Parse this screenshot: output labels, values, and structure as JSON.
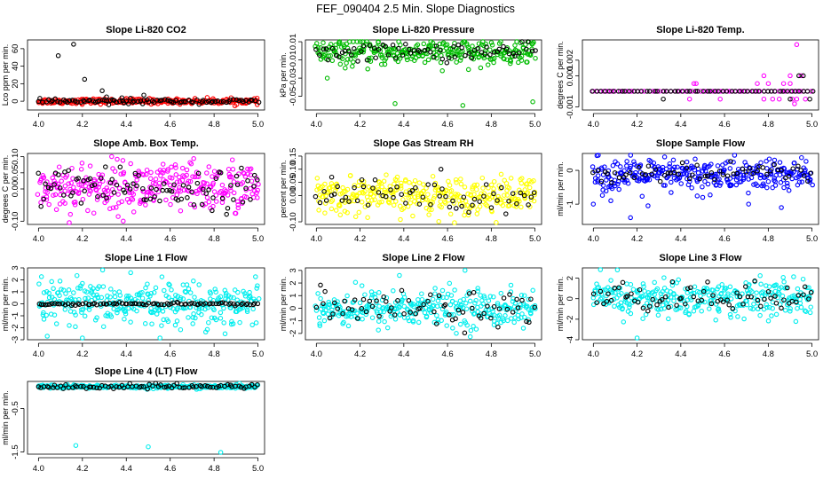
{
  "figure": {
    "title": "FEF_090404  2.5 Min. Slope Diagnostics"
  },
  "chart_data": [
    {
      "id": "co2",
      "type": "scatter",
      "title": "Slope Li-820 CO2",
      "ylabel": "Lco ppm per min.",
      "xlim": [
        3.95,
        5.03
      ],
      "ylim": [
        -10,
        70
      ],
      "xticks": [
        "4.0",
        "4.2",
        "4.4",
        "4.6",
        "4.8",
        "5.0"
      ],
      "yticks": [
        "0",
        "20",
        "40",
        "60"
      ],
      "series": [
        {
          "color": "#ff0000",
          "baseline": 0,
          "spread": 1.5,
          "n": 260,
          "outliers": []
        },
        {
          "color": "#000000",
          "baseline": 0,
          "spread": 1.2,
          "n": 90,
          "outliers": [
            [
              4.09,
              52
            ],
            [
              4.16,
              65
            ],
            [
              4.21,
              25
            ],
            [
              4.29,
              12
            ],
            [
              4.31,
              5
            ],
            [
              4.38,
              4
            ],
            [
              4.48,
              7
            ],
            [
              4.41,
              -3
            ],
            [
              4.32,
              -4
            ]
          ]
        }
      ]
    },
    {
      "id": "pressure",
      "type": "scatter",
      "title": "Slope Li-820 Pressure",
      "ylabel": "kPa per min.",
      "xlim": [
        3.95,
        5.03
      ],
      "ylim": [
        -0.065,
        0.012
      ],
      "xticks": [
        "4.0",
        "4.2",
        "4.4",
        "4.6",
        "4.8",
        "5.0"
      ],
      "yticks": [
        "-0.05",
        "-0.03",
        "-0.01",
        "0.01"
      ],
      "series": [
        {
          "color": "#00bb00",
          "baseline": -0.002,
          "spread": 0.007,
          "n": 300,
          "outliers": [
            [
              4.36,
              -0.058
            ],
            [
              4.67,
              -0.06
            ],
            [
              4.99,
              -0.056
            ],
            [
              4.05,
              -0.03
            ]
          ]
        },
        {
          "color": "#000000",
          "baseline": -0.001,
          "spread": 0.005,
          "n": 70,
          "outliers": []
        }
      ]
    },
    {
      "id": "temp",
      "type": "scatter",
      "title": "Slope Li-820 Temp.",
      "ylabel": "degrees C per min.",
      "xlim": [
        3.95,
        5.03
      ],
      "ylim": [
        -0.0012,
        0.0033
      ],
      "xticks": [
        "4.0",
        "4.2",
        "4.4",
        "4.6",
        "4.8",
        "5.0"
      ],
      "yticks": [
        "-0.001",
        "0.001",
        "0.002"
      ],
      "series": [
        {
          "color": "#ff00ff",
          "baseline": 0,
          "spread": 0,
          "n": 60,
          "outliers": [
            [
              4.46,
              0.0005
            ],
            [
              4.47,
              0.0005
            ],
            [
              4.75,
              0.0005
            ],
            [
              4.8,
              0.0005
            ],
            [
              4.87,
              0.0005
            ],
            [
              4.9,
              0.0005
            ],
            [
              4.93,
              0.003
            ],
            [
              4.78,
              0.001
            ],
            [
              4.9,
              0.001
            ],
            [
              4.95,
              0.001
            ],
            [
              4.78,
              -0.0005
            ],
            [
              4.82,
              -0.0005
            ],
            [
              4.85,
              -0.0005
            ],
            [
              4.91,
              -0.0005
            ],
            [
              4.93,
              -0.0005
            ],
            [
              4.97,
              -0.0005
            ],
            [
              4.92,
              -0.0008
            ],
            [
              4.44,
              -0.0005
            ],
            [
              4.58,
              -0.0005
            ]
          ]
        },
        {
          "color": "#000000",
          "baseline": 0,
          "spread": 0,
          "n": 55,
          "outliers": [
            [
              4.94,
              0.001
            ],
            [
              4.96,
              0.001
            ],
            [
              4.9,
              -0.0005
            ],
            [
              4.99,
              -0.0005
            ],
            [
              4.32,
              -0.0005
            ]
          ]
        }
      ]
    },
    {
      "id": "box",
      "type": "scatter",
      "title": "Slope Amb. Box Temp.",
      "ylabel": "degrees C per min.",
      "xlim": [
        3.95,
        5.03
      ],
      "ylim": [
        -0.11,
        0.11
      ],
      "xticks": [
        "4.0",
        "4.2",
        "4.4",
        "4.6",
        "4.8",
        "5.0"
      ],
      "yticks": [
        "-0.10",
        "0.00",
        "0.05",
        "0.10"
      ],
      "series": [
        {
          "color": "#ff00ff",
          "baseline": 0.005,
          "spread": 0.04,
          "n": 320,
          "outliers": []
        },
        {
          "color": "#000000",
          "baseline": 0.0,
          "spread": 0.03,
          "n": 90,
          "outliers": []
        }
      ]
    },
    {
      "id": "rh",
      "type": "scatter",
      "title": "Slope Gas Stream RH",
      "ylabel": "percent per min.",
      "xlim": [
        3.95,
        5.03
      ],
      "ylim": [
        -0.11,
        0.16
      ],
      "xticks": [
        "4.0",
        "4.2",
        "4.4",
        "4.6",
        "4.8",
        "5.0"
      ],
      "yticks": [
        "-0.10",
        "0.00",
        "0.05",
        "0.10",
        "0.15"
      ],
      "series": [
        {
          "color": "#ffff00",
          "baseline": 0.0,
          "spread": 0.035,
          "n": 320,
          "outliers": []
        },
        {
          "color": "#000000",
          "baseline": 0.0,
          "spread": 0.03,
          "n": 60,
          "outliers": [
            [
              4.07,
              0.07
            ],
            [
              4.57,
              0.1
            ]
          ]
        }
      ]
    },
    {
      "id": "sample",
      "type": "scatter",
      "title": "Slope Sample Flow",
      "ylabel": "ml/min per min.",
      "xlim": [
        3.95,
        5.03
      ],
      "ylim": [
        -1.6,
        0.5
      ],
      "xticks": [
        "4.0",
        "4.2",
        "4.4",
        "4.6",
        "4.8",
        "5.0"
      ],
      "yticks": [
        "-1",
        "0"
      ],
      "series": [
        {
          "color": "#0000ff",
          "baseline": -0.15,
          "spread": 0.25,
          "n": 320,
          "outliers": [
            [
              4.17,
              -1.4
            ],
            [
              4.0,
              -1.0
            ],
            [
              4.25,
              -1.05
            ],
            [
              4.08,
              -0.9
            ],
            [
              4.71,
              -1.0
            ],
            [
              4.86,
              -1.1
            ],
            [
              4.5,
              -0.8
            ]
          ]
        },
        {
          "color": "#000000",
          "baseline": -0.1,
          "spread": 0.15,
          "n": 60,
          "outliers": []
        }
      ]
    },
    {
      "id": "line1",
      "type": "scatter",
      "title": "Slope Line 1 Flow",
      "ylabel": "ml/min per min.",
      "xlim": [
        3.95,
        5.03
      ],
      "ylim": [
        -3,
        3
      ],
      "xticks": [
        "4.0",
        "4.2",
        "4.4",
        "4.6",
        "4.8",
        "5.0"
      ],
      "yticks": [
        "-3",
        "-2",
        "-1",
        "0",
        "1",
        "2",
        "3"
      ],
      "series": [
        {
          "color": "#00eeee",
          "baseline": 0,
          "spread": 0.9,
          "n": 320,
          "outliers": [
            [
              4.2,
              -2.9
            ],
            [
              4.42,
              2.6
            ],
            [
              4.85,
              -2.5
            ]
          ]
        },
        {
          "color": "#000000",
          "baseline": 0,
          "spread": 0.05,
          "n": 90,
          "outliers": []
        }
      ]
    },
    {
      "id": "line2",
      "type": "scatter",
      "title": "Slope Line 2 Flow",
      "ylabel": "ml/min per min.",
      "xlim": [
        3.95,
        5.03
      ],
      "ylim": [
        -2.5,
        3.2
      ],
      "xticks": [
        "4.0",
        "4.2",
        "4.4",
        "4.6",
        "4.8",
        "5.0"
      ],
      "yticks": [
        "-2",
        "-1",
        "0",
        "1",
        "2",
        "3"
      ],
      "series": [
        {
          "color": "#00eeee",
          "baseline": 0.0,
          "spread": 0.75,
          "n": 320,
          "outliers": [
            [
              4.68,
              3.0
            ],
            [
              4.38,
              2.6
            ]
          ]
        },
        {
          "color": "#000000",
          "baseline": 0.0,
          "spread": 0.7,
          "n": 70,
          "outliers": []
        }
      ]
    },
    {
      "id": "line3",
      "type": "scatter",
      "title": "Slope Line 3 Flow",
      "ylabel": "ml/min per min.",
      "xlim": [
        3.95,
        5.03
      ],
      "ylim": [
        -4,
        3
      ],
      "xticks": [
        "4.0",
        "4.2",
        "4.4",
        "4.6",
        "4.8",
        "5.0"
      ],
      "yticks": [
        "-4",
        "-2",
        "0",
        "2"
      ],
      "series": [
        {
          "color": "#00eeee",
          "baseline": 0.0,
          "spread": 0.9,
          "n": 320,
          "outliers": [
            [
              4.2,
              -3.9
            ],
            [
              4.11,
              2.8
            ]
          ]
        },
        {
          "color": "#000000",
          "baseline": 0.1,
          "spread": 0.7,
          "n": 70,
          "outliers": []
        }
      ]
    },
    {
      "id": "line4",
      "type": "scatter",
      "title": "Slope Line 4 (LT) Flow",
      "ylabel": "ml/min per min.",
      "xlim": [
        3.95,
        5.03
      ],
      "ylim": [
        -1.55,
        0.12
      ],
      "xticks": [
        "4.0",
        "4.2",
        "4.4",
        "4.6",
        "4.8",
        "5.0"
      ],
      "yticks": [
        "-1.5",
        "-0.5"
      ],
      "series": [
        {
          "color": "#00eeee",
          "baseline": 0.0,
          "spread": 0.02,
          "n": 280,
          "outliers": [
            [
              4.17,
              -1.35
            ],
            [
              4.5,
              -1.38
            ],
            [
              4.83,
              -1.52
            ]
          ]
        },
        {
          "color": "#000000",
          "baseline": 0.0,
          "spread": 0.03,
          "n": 80,
          "outliers": []
        }
      ]
    }
  ]
}
